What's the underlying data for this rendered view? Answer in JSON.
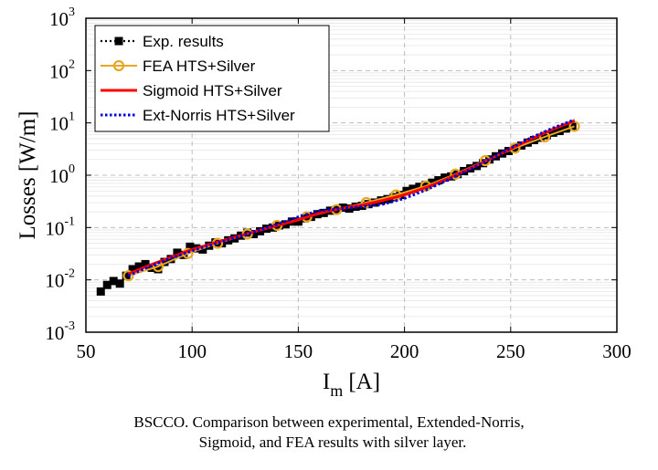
{
  "chart_data": {
    "type": "line",
    "xlabel": "I",
    "xlabel_sub": "m",
    "xlabel_unit": "[A]",
    "ylabel": "Losses [W/m]",
    "x_ticks": [
      "50",
      "100",
      "150",
      "200",
      "250",
      "300"
    ],
    "y_ticks": [
      {
        "base": "10",
        "exp": "-3"
      },
      {
        "base": "10",
        "exp": "-2"
      },
      {
        "base": "10",
        "exp": "-1"
      },
      {
        "base": "10",
        "exp": "0"
      },
      {
        "base": "10",
        "exp": "1"
      },
      {
        "base": "10",
        "exp": "2"
      },
      {
        "base": "10",
        "exp": "3"
      }
    ],
    "xlim": [
      50,
      300
    ],
    "ylim": [
      0.001,
      1000
    ],
    "y_scale": "log",
    "grid": true,
    "legend_position": "top-left",
    "series": [
      {
        "name": "Exp. results",
        "style": "dotted-square",
        "color": "#000000",
        "x": [
          57,
          60,
          63,
          66,
          69,
          72,
          75,
          78,
          81,
          84,
          87,
          90,
          93,
          96,
          99,
          102,
          105,
          108,
          111,
          114,
          117,
          120,
          123,
          126,
          129,
          132,
          135,
          138,
          141,
          144,
          147,
          150,
          153,
          156,
          159,
          162,
          165,
          168,
          171,
          174,
          177,
          180,
          183,
          186,
          189,
          192,
          195,
          198,
          201,
          204,
          207,
          210,
          213,
          216,
          219,
          222,
          225,
          228,
          231,
          234,
          237,
          240,
          243,
          246,
          249,
          252,
          255,
          258,
          261,
          264,
          267,
          270,
          273,
          276,
          279
        ],
        "y": [
          0.006,
          0.008,
          0.0095,
          0.0085,
          0.012,
          0.016,
          0.018,
          0.02,
          0.017,
          0.016,
          0.022,
          0.025,
          0.033,
          0.03,
          0.043,
          0.04,
          0.038,
          0.045,
          0.052,
          0.05,
          0.057,
          0.062,
          0.07,
          0.08,
          0.075,
          0.085,
          0.095,
          0.1,
          0.11,
          0.115,
          0.13,
          0.13,
          0.15,
          0.16,
          0.18,
          0.19,
          0.21,
          0.22,
          0.24,
          0.23,
          0.25,
          0.26,
          0.28,
          0.3,
          0.33,
          0.35,
          0.38,
          0.42,
          0.5,
          0.55,
          0.6,
          0.65,
          0.72,
          0.8,
          0.9,
          0.95,
          1.05,
          1.2,
          1.35,
          1.5,
          1.7,
          2.0,
          2.3,
          2.6,
          2.9,
          3.3,
          3.7,
          4.2,
          4.7,
          5.2,
          5.8,
          6.5,
          7.0,
          7.8,
          8.5
        ]
      },
      {
        "name": "FEA HTS+Silver",
        "style": "solid-circle",
        "color": "#E8A623",
        "x": [
          70,
          84,
          98,
          112,
          126,
          140,
          154,
          168,
          182,
          196,
          210,
          224,
          238,
          252,
          266,
          280
        ],
        "y": [
          0.012,
          0.018,
          0.032,
          0.05,
          0.075,
          0.11,
          0.16,
          0.22,
          0.3,
          0.42,
          0.62,
          1.05,
          1.9,
          3.3,
          5.4,
          8.6
        ]
      },
      {
        "name": "Sigmoid HTS+Silver",
        "style": "solid",
        "color": "#FF0000",
        "x": [
          70,
          80,
          90,
          100,
          110,
          120,
          130,
          140,
          150,
          160,
          170,
          180,
          190,
          200,
          210,
          220,
          230,
          240,
          250,
          260,
          270,
          280
        ],
        "y": [
          0.013,
          0.019,
          0.027,
          0.038,
          0.05,
          0.065,
          0.085,
          0.11,
          0.14,
          0.19,
          0.23,
          0.27,
          0.33,
          0.42,
          0.58,
          0.85,
          1.3,
          2.0,
          3.2,
          5.0,
          7.6,
          11.0
        ]
      },
      {
        "name": "Ext-Norris HTS+Silver",
        "style": "dotted",
        "color": "#0000DD",
        "x": [
          70,
          80,
          90,
          100,
          110,
          120,
          130,
          140,
          150,
          160,
          170,
          180,
          190,
          200,
          210,
          220,
          230,
          240,
          250,
          260,
          270,
          280
        ],
        "y": [
          0.012,
          0.018,
          0.026,
          0.036,
          0.048,
          0.063,
          0.085,
          0.115,
          0.16,
          0.21,
          0.23,
          0.25,
          0.28,
          0.36,
          0.52,
          0.8,
          1.25,
          2.0,
          3.3,
          5.3,
          8.0,
          11.5
        ]
      }
    ]
  },
  "caption": {
    "line1": "BSCCO. Comparison between experimental, Extended-Norris,",
    "line2": "Sigmoid, and FEA results with silver layer."
  }
}
